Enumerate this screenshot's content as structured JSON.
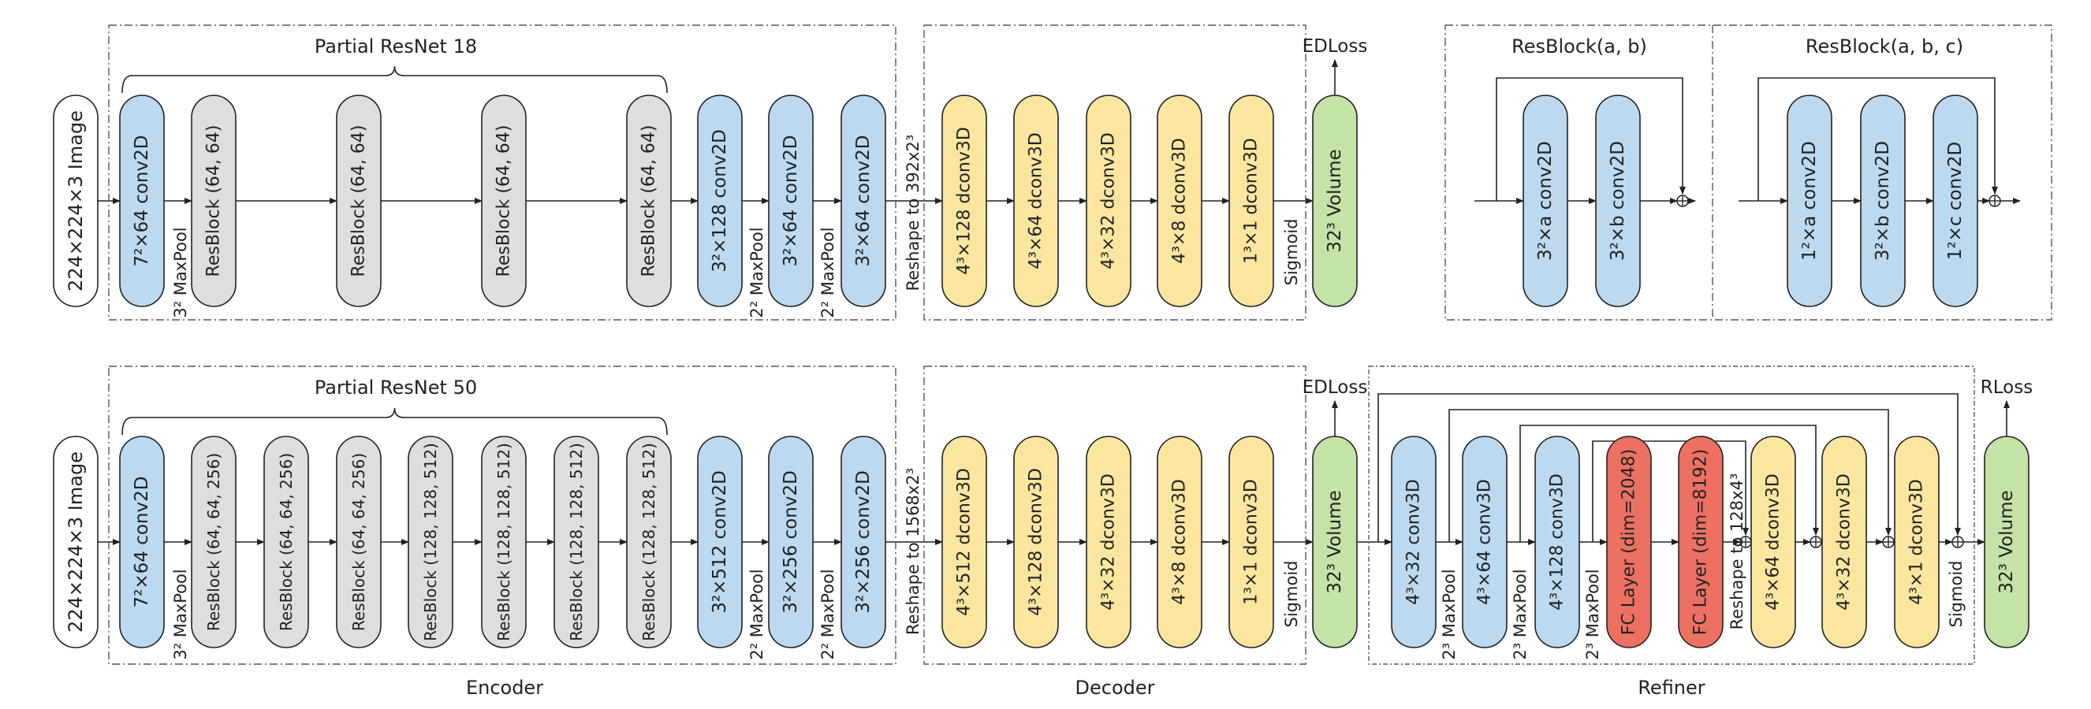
{
  "top": {
    "group_label": "Partial ResNet 18",
    "image": "224×224×3 Image",
    "conv1": "7²×64 conv2D",
    "pool1": "3² MaxPool",
    "resblocks": [
      "ResBlock (64, 64)",
      "ResBlock (64, 64)",
      "ResBlock (64, 64)",
      "ResBlock (64, 64)"
    ],
    "conv_a": "3²×128 conv2D",
    "pool_a": "2² MaxPool",
    "conv_b": "3²×64 conv2D",
    "pool_b": "2² MaxPool",
    "conv_c": "3²×64 conv2D",
    "reshape": "Reshape to 392x2³",
    "decoder": [
      "4³×128 dconv3D",
      "4³×64 dconv3D",
      "4³×32 dconv3D",
      "4³×8 dconv3D",
      "1³×1 dconv3D"
    ],
    "sigmoid": "Sigmoid",
    "volume": "32³ Volume",
    "loss": "EDLoss"
  },
  "legend": {
    "resblock2": {
      "title": "ResBlock(a, b)",
      "layers": [
        "3²×a conv2D",
        "3²×b conv2D"
      ]
    },
    "resblock3": {
      "title": "ResBlock(a, b, c)",
      "layers": [
        "1²×a conv2D",
        "3²×b conv2D",
        "1²×c conv2D"
      ]
    }
  },
  "bottom": {
    "group_label": "Partial ResNet 50",
    "image": "224×224×3 Image",
    "conv1": "7²×64 conv2D",
    "pool1": "3² MaxPool",
    "resblocks": [
      "ResBlock (64, 64, 256)",
      "ResBlock (64, 64, 256)",
      "ResBlock (64, 64, 256)",
      "ResBlock (128, 128, 512)",
      "ResBlock (128, 128, 512)",
      "ResBlock (128, 128, 512)",
      "ResBlock (128, 128, 512)"
    ],
    "conv_a": "3²×512 conv2D",
    "pool_a": "2² MaxPool",
    "conv_b": "3²×256 conv2D",
    "pool_b": "2² MaxPool",
    "conv_c": "3²×256 conv2D",
    "reshape": "Reshape to 1568x2³",
    "decoder": [
      "4³×512 dconv3D",
      "4³×128 dconv3D",
      "4³×32 dconv3D",
      "4³×8 dconv3D",
      "1³×1 dconv3D"
    ],
    "sigmoid": "Sigmoid",
    "volume": "32³ Volume",
    "loss": "EDLoss",
    "refiner": {
      "conv1": "4³×32 conv3D",
      "pool1": "2³ MaxPool",
      "conv2": "4³×64 conv3D",
      "pool2": "2³ MaxPool",
      "conv3": "4³×128 conv3D",
      "pool3": "2³ MaxPool",
      "fc1": "FC Layer (dim=2048)",
      "fc2": "FC Layer (dim=8192)",
      "reshape": "Reshape to 128x4³",
      "dconv": [
        "4³×64 dconv3D",
        "4³×32 dconv3D",
        "4³×1 dconv3D"
      ],
      "sigmoid": "Sigmoid",
      "volume": "32³ Volume",
      "loss": "RLoss"
    }
  },
  "sections": {
    "encoder": "Encoder",
    "decoder": "Decoder",
    "refiner": "Refiner"
  },
  "colors": {
    "conv": "#bcd9f0",
    "resblock": "#dedede",
    "dconv": "#fbe6a0",
    "volume": "#c4e3a6",
    "fc": "#ec7163",
    "stroke": "#222222",
    "dash": "#555555"
  }
}
